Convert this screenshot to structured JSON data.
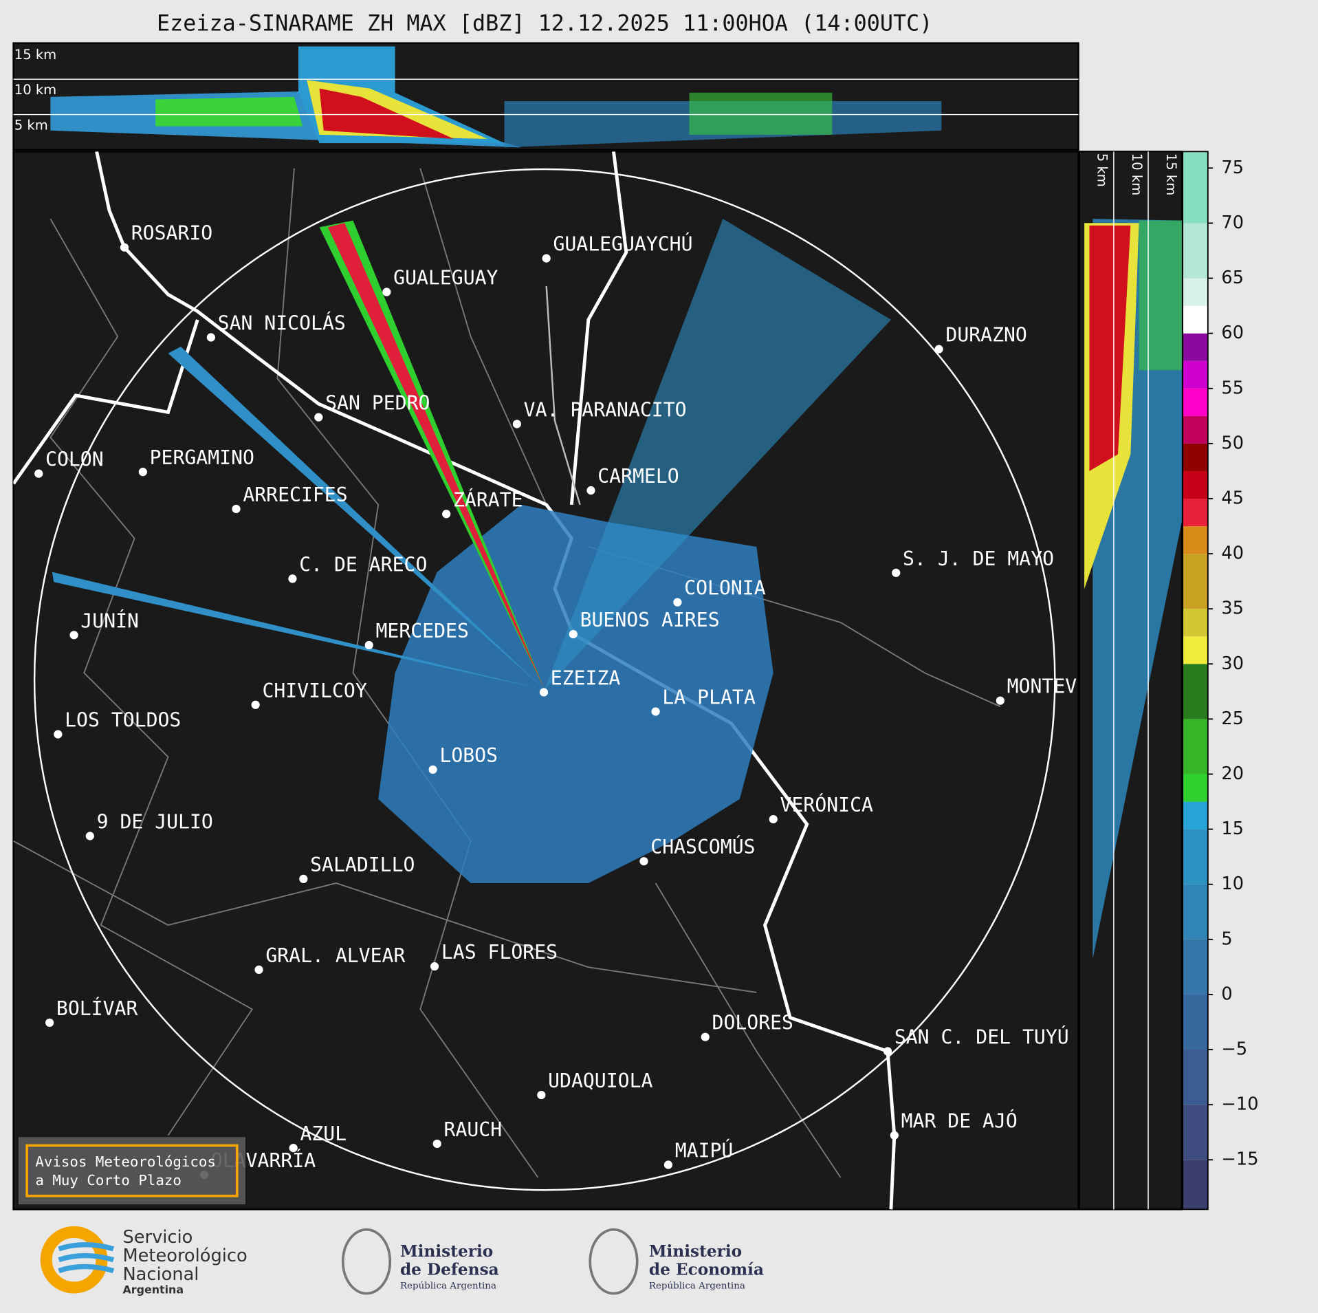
{
  "title": "Ezeiza-SINARAME ZH MAX [dBZ] 12.12.2025 11:00HOA (14:00UTC)",
  "top_heights": [
    "15 km",
    "10 km",
    "5 km"
  ],
  "side_heights": [
    "5 km",
    "10 km",
    "15 km"
  ],
  "cities": [
    "ROSARIO",
    "GUALEGUAYCHÚ",
    "GUALEGUAY",
    "SAN NICOLÁS",
    "DURAZNO",
    "SAN PEDRO",
    "VA. PARANACITO",
    "COLON",
    "PERGAMINO",
    "CARMELO",
    "ARRECIFES",
    "ZÁRATE",
    "S. J. DE MAYO",
    "C. DE ARECO",
    "COLONIA",
    "BUENOS AIRES",
    "JUNÍN",
    "MERCEDES",
    "MONTEV",
    "EZEIZA",
    "CHIVILCOY",
    "LA PLATA",
    "LOS TOLDOS",
    "LOBOS",
    "VERÓNICA",
    "9 DE JULIO",
    "CHASCOMÚS",
    "SALADILLO",
    "GRAL. ALVEAR",
    "LAS FLORES",
    "BOLÍVAR",
    "DOLORES",
    "SAN C. DEL TUYÚ",
    "UDAQUIOLA",
    "MAR DE AJÓ",
    "RAUCH",
    "AZUL",
    "OLAVARRÍA",
    "MAIPÚ"
  ],
  "colorbar": {
    "lim": [
      -19.5,
      76.5
    ],
    "ticks": [
      75,
      70,
      65,
      60,
      55,
      50,
      45,
      40,
      35,
      30,
      25,
      20,
      15,
      10,
      5,
      0,
      {
        "value": -5,
        "label": "−5"
      },
      {
        "value": -10,
        "label": "−10"
      },
      {
        "value": -15,
        "label": "−15"
      }
    ],
    "levels": [
      -19.5,
      -15,
      -10,
      -5,
      0,
      5,
      10,
      15,
      17.5,
      20,
      25,
      30,
      32.5,
      35,
      40,
      42.5,
      45,
      47.5,
      50,
      52.5,
      55,
      57.5,
      60,
      62.5,
      65,
      70,
      76.5
    ],
    "colors": [
      "#3a3f6e",
      "#3f4d80",
      "#3c5d92",
      "#38699e",
      "#3577a8",
      "#3184b6",
      "#2a91c0",
      "#28a3d8",
      "#2fd12f",
      "#36b526",
      "#2a7a1e",
      "#f0ec3a",
      "#d4c832",
      "#c9a224",
      "#d98b1a",
      "#e8203a",
      "#c70018",
      "#8f0000",
      "#c0005a",
      "#ff00c8",
      "#d000d0",
      "#8a0aa0",
      "#ffffff",
      "#d8f2e8",
      "#b4e8d4",
      "#86dfbe"
    ]
  },
  "warning": {
    "line1": "Avisos Meteorológicos",
    "line2": "a Muy Corto Plazo"
  },
  "footer": {
    "smn1": "Servicio",
    "smn2": "Meteorológico",
    "smn3": "Nacional",
    "smn4": "Argentina",
    "def1": "Ministerio",
    "def2": "de Defensa",
    "def3": "República Argentina",
    "eco1": "Ministerio",
    "eco2": "de Economía",
    "eco3": "República Argentina"
  }
}
